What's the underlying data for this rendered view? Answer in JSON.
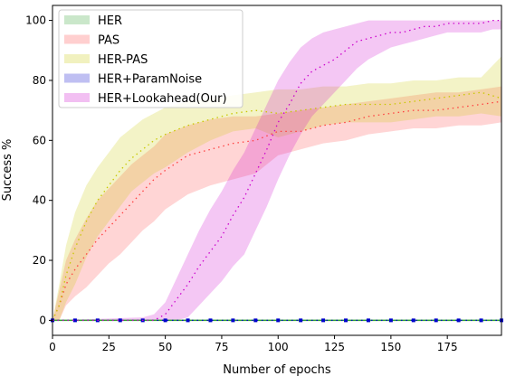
{
  "chart_data": {
    "type": "line",
    "xlabel": "Number of epochs",
    "ylabel": "Success %",
    "xlim": [
      0,
      199
    ],
    "ylim": [
      -5,
      105
    ],
    "xticks": [
      0,
      25,
      50,
      75,
      100,
      125,
      150,
      175
    ],
    "yticks": [
      0,
      20,
      40,
      60,
      80,
      100
    ],
    "legend_position": "top-left",
    "series": [
      {
        "name": "HER",
        "color": "#2ca02c",
        "x": [
          0,
          50,
          100,
          150,
          199
        ],
        "y": [
          0,
          0,
          0,
          0,
          0
        ],
        "band_lower": [
          0,
          0,
          0,
          0,
          0
        ],
        "band_upper": [
          0,
          0,
          0,
          0,
          0
        ]
      },
      {
        "name": "PAS",
        "color": "#ff4040",
        "x": [
          0,
          3,
          6,
          10,
          15,
          20,
          25,
          30,
          35,
          40,
          45,
          50,
          60,
          70,
          80,
          90,
          100,
          110,
          120,
          130,
          140,
          150,
          160,
          170,
          180,
          190,
          199
        ],
        "y": [
          0,
          5,
          12,
          17,
          22,
          27,
          31,
          35,
          39,
          43,
          47,
          50,
          55,
          57,
          59,
          60,
          63,
          63,
          65,
          66,
          68,
          69,
          70,
          70,
          71,
          72,
          73
        ],
        "band_lower": [
          0,
          0,
          5,
          8,
          11,
          15,
          19,
          22,
          26,
          30,
          33,
          37,
          42,
          45,
          47,
          49,
          55,
          57,
          59,
          60,
          62,
          63,
          64,
          64,
          65,
          65,
          66
        ],
        "band_upper": [
          0,
          10,
          20,
          27,
          34,
          40,
          44,
          48,
          52,
          55,
          58,
          62,
          65,
          67,
          68,
          68,
          69,
          70,
          71,
          72,
          73,
          74,
          75,
          76,
          76,
          77,
          78
        ]
      },
      {
        "name": "HER-PAS",
        "color": "#c8c800",
        "x": [
          0,
          3,
          6,
          10,
          15,
          20,
          25,
          30,
          35,
          40,
          45,
          50,
          60,
          70,
          80,
          90,
          100,
          110,
          120,
          130,
          140,
          150,
          160,
          170,
          180,
          190,
          199
        ],
        "y": [
          0,
          5,
          15,
          24,
          33,
          40,
          45,
          50,
          54,
          57,
          60,
          62,
          65,
          67,
          69,
          70,
          69,
          70,
          71,
          72,
          72,
          72,
          73,
          74,
          75,
          76,
          74
        ],
        "band_lower": [
          0,
          0,
          6,
          12,
          21,
          28,
          33,
          38,
          43,
          46,
          49,
          51,
          56,
          60,
          63,
          64,
          61,
          63,
          65,
          66,
          66,
          66,
          67,
          68,
          68,
          69,
          68
        ],
        "band_upper": [
          0,
          12,
          25,
          36,
          45,
          51,
          56,
          61,
          64,
          67,
          69,
          71,
          73,
          74,
          75,
          76,
          77,
          77,
          78,
          78,
          79,
          79,
          80,
          80,
          81,
          81,
          88
        ]
      },
      {
        "name": "HER+ParamNoise",
        "color": "#0000cc",
        "x": [
          0,
          10,
          20,
          30,
          40,
          50,
          60,
          70,
          80,
          90,
          100,
          110,
          120,
          130,
          140,
          150,
          160,
          170,
          180,
          190,
          199
        ],
        "y": [
          0,
          0,
          0,
          0,
          0,
          0,
          0,
          0,
          0,
          0,
          0,
          0,
          0,
          0,
          0,
          0,
          0,
          0,
          0,
          0,
          0
        ],
        "band_lower": [
          0,
          0,
          0,
          0,
          0,
          0,
          0,
          0,
          0,
          0,
          0,
          0,
          0,
          0,
          0,
          0,
          0,
          0,
          0,
          0,
          0
        ],
        "band_upper": [
          0,
          0,
          0,
          0,
          0,
          0,
          0,
          0,
          0,
          0,
          0,
          0,
          0,
          0,
          0,
          0,
          0,
          0,
          0,
          0,
          0
        ]
      },
      {
        "name": "HER+Lookahead(Our)",
        "color": "#cc00cc",
        "x": [
          0,
          40,
          45,
          50,
          55,
          60,
          65,
          70,
          75,
          80,
          85,
          90,
          95,
          100,
          105,
          110,
          115,
          120,
          125,
          130,
          135,
          140,
          145,
          150,
          155,
          160,
          165,
          170,
          175,
          180,
          185,
          190,
          195,
          199
        ],
        "y": [
          0,
          0,
          0,
          2,
          7,
          12,
          18,
          23,
          28,
          35,
          41,
          49,
          57,
          66,
          72,
          79,
          83,
          85,
          87,
          90,
          93,
          94,
          95,
          96,
          96,
          97,
          98,
          98,
          99,
          99,
          99,
          99,
          100,
          100
        ],
        "band_lower": [
          0,
          0,
          0,
          0,
          0,
          1,
          5,
          9,
          13,
          18,
          22,
          30,
          38,
          47,
          55,
          62,
          68,
          72,
          76,
          80,
          84,
          87,
          89,
          91,
          92,
          93,
          94,
          95,
          96,
          96,
          96,
          96,
          97,
          97
        ],
        "band_upper": [
          0,
          1,
          2,
          6,
          14,
          22,
          30,
          37,
          43,
          50,
          56,
          64,
          72,
          80,
          86,
          91,
          94,
          96,
          97,
          98,
          99,
          100,
          100,
          100,
          100,
          100,
          100,
          100,
          100,
          100,
          100,
          100,
          100,
          100
        ]
      }
    ]
  }
}
